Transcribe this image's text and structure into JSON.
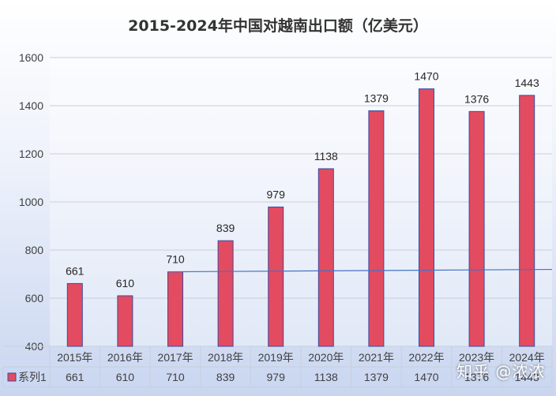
{
  "chart_data": {
    "type": "bar",
    "title": "2015-2024年中国对越南出口额（亿美元）",
    "categories": [
      "2015年",
      "2016年",
      "2017年",
      "2018年",
      "2019年",
      "2020年",
      "2021年",
      "2022年",
      "2023年",
      "2024年"
    ],
    "series": [
      {
        "name": "系列1",
        "values": [
          661,
          610,
          710,
          839,
          979,
          1138,
          1379,
          1470,
          1376,
          1443
        ]
      }
    ],
    "ylim": [
      400,
      1600
    ],
    "yticks": [
      400,
      600,
      800,
      1000,
      1200,
      1400,
      1600
    ],
    "grid": true,
    "data_table": true,
    "trendline": true,
    "colors": {
      "bar": "#e34b60",
      "bar_border": "#3b4aa0",
      "trend": "#4472c4"
    }
  },
  "watermark": "知乎 @浓浓"
}
